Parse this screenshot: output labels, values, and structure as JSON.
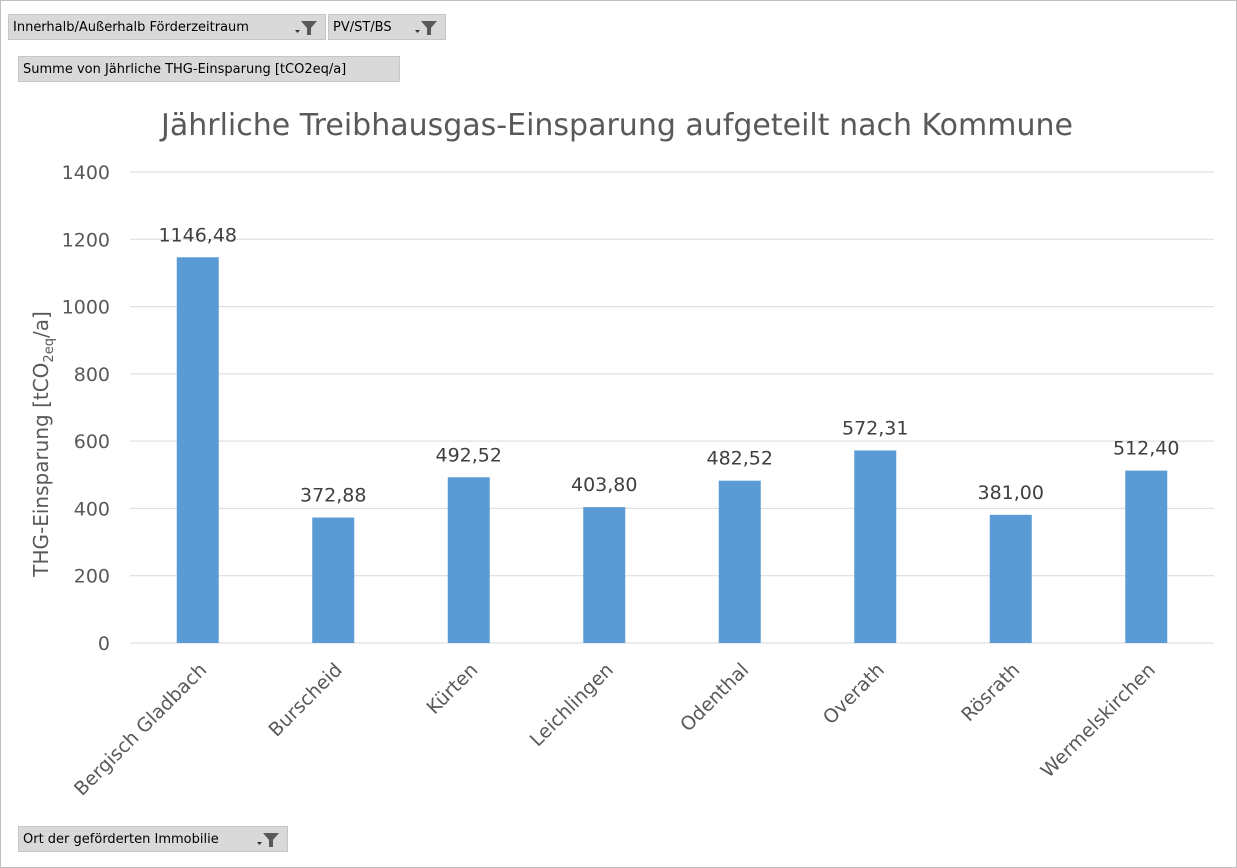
{
  "filters": {
    "period_label": "Innerhalb/Außerhalb Förderzeitraum",
    "type_label": "PV/ST/BS",
    "value_field_label": "Summe von Jährliche THG-Einsparung [tCO2eq/a]",
    "axis_field_label": "Ort der geförderten Immobilie"
  },
  "colors": {
    "bar": "#5b9bd5",
    "grid": "#d9d9d9",
    "text": "#595959",
    "label": "#404040"
  },
  "icons": {
    "filter": "filter-dropdown-icon"
  },
  "chart_data": {
    "type": "bar",
    "title": "Jährliche Treibhausgas-Einsparung aufgeteilt nach Kommune",
    "ylabel_main": "THG-Einsparung [tCO",
    "ylabel_sub": "2eq",
    "ylabel_end": "/a]",
    "xlabel": "",
    "categories": [
      "Bergisch Gladbach",
      "Burscheid",
      "Kürten",
      "Leichlingen",
      "Odenthal",
      "Overath",
      "Rösrath",
      "Wermelskirchen"
    ],
    "values": [
      1146.48,
      372.88,
      492.52,
      403.8,
      482.52,
      572.31,
      381.0,
      512.4
    ],
    "value_labels": [
      "1146,48",
      "372,88",
      "492,52",
      "403,80",
      "482,52",
      "572,31",
      "381,00",
      "512,40"
    ],
    "ylim": [
      0,
      1400
    ],
    "yticks": [
      "0",
      "200",
      "400",
      "600",
      "800",
      "1000",
      "1200",
      "1400"
    ],
    "grid": true,
    "legend": "none"
  }
}
